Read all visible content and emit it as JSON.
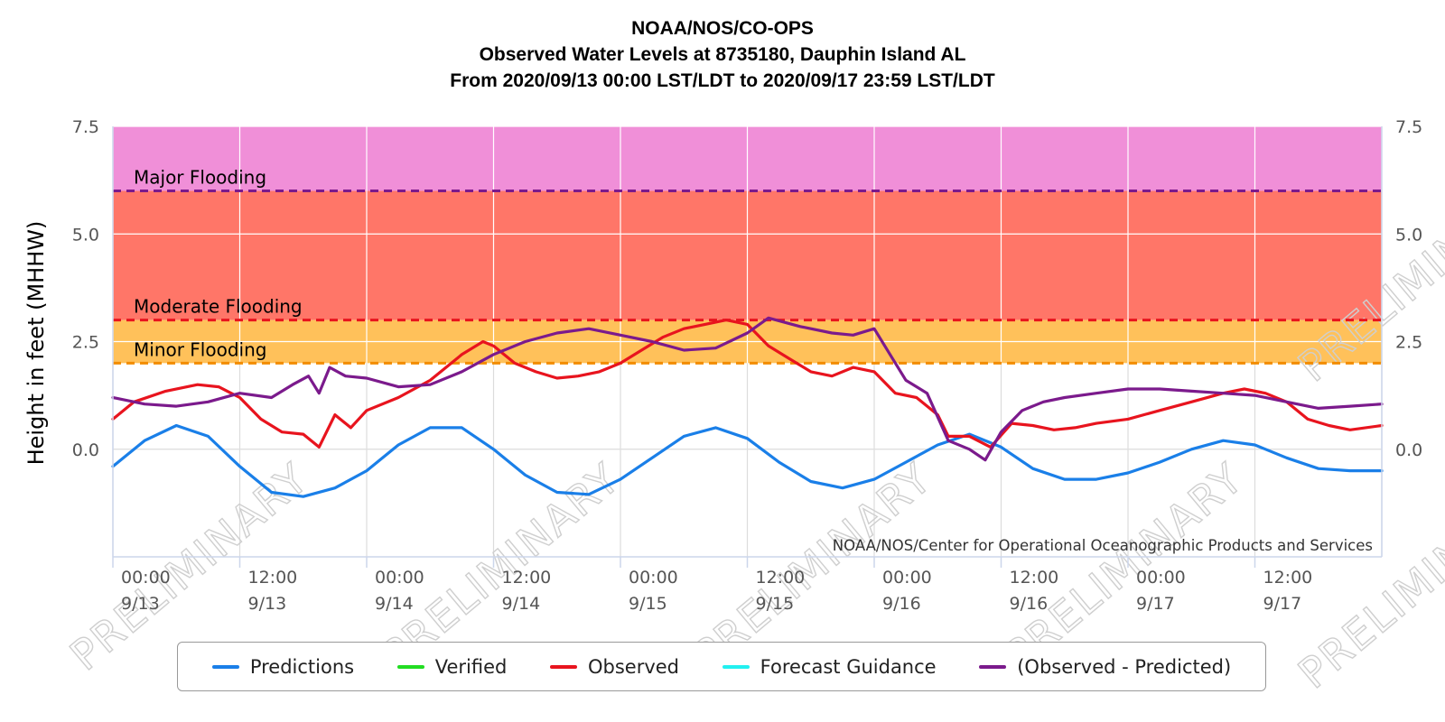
{
  "chart_data": {
    "type": "line",
    "title_lines": [
      "NOAA/NOS/CO-OPS",
      "Observed Water Levels at 8735180, Dauphin Island AL",
      "From 2020/09/13 00:00 LST/LDT to 2020/09/17 23:59 LST/LDT"
    ],
    "ylabel": "Height in feet (MHHW)",
    "credit": "NOAA/NOS/Center for Operational Oceanographic Products and Services",
    "watermark": "PRELIMINARY",
    "ylim": [
      -2.5,
      7.5
    ],
    "y_ticks": [
      {
        "value": 7.5,
        "label": "7.5"
      },
      {
        "value": 5.0,
        "label": "5.0"
      },
      {
        "value": 2.5,
        "label": "2.5"
      },
      {
        "value": 0.0,
        "label": "0.0"
      }
    ],
    "xlim": [
      "2020-09-13 00:00",
      "2020-09-18 00:00"
    ],
    "x_ticks": [
      {
        "t": "2020-09-13 00:00",
        "time": "00:00",
        "date": "9/13"
      },
      {
        "t": "2020-09-13 12:00",
        "time": "12:00",
        "date": "9/13"
      },
      {
        "t": "2020-09-14 00:00",
        "time": "00:00",
        "date": "9/14"
      },
      {
        "t": "2020-09-14 12:00",
        "time": "12:00",
        "date": "9/14"
      },
      {
        "t": "2020-09-15 00:00",
        "time": "00:00",
        "date": "9/15"
      },
      {
        "t": "2020-09-15 12:00",
        "time": "12:00",
        "date": "9/15"
      },
      {
        "t": "2020-09-16 00:00",
        "time": "00:00",
        "date": "9/16"
      },
      {
        "t": "2020-09-16 12:00",
        "time": "12:00",
        "date": "9/16"
      },
      {
        "t": "2020-09-17 00:00",
        "time": "00:00",
        "date": "9/17"
      },
      {
        "t": "2020-09-17 12:00",
        "time": "12:00",
        "date": "9/17"
      }
    ],
    "x_gridlines": [
      "2020-09-13 00:00",
      "2020-09-13 12:00",
      "2020-09-14 00:00",
      "2020-09-14 12:00",
      "2020-09-15 00:00",
      "2020-09-15 12:00",
      "2020-09-16 00:00",
      "2020-09-16 12:00",
      "2020-09-17 00:00",
      "2020-09-17 12:00",
      "2020-09-18 00:00"
    ],
    "thresholds": [
      {
        "name": "Major Flooding",
        "value": 6.0,
        "line_color": "#7b1a8c",
        "band_color": "#f08fd8",
        "band_top": 7.5
      },
      {
        "name": "Moderate Flooding",
        "value": 3.0,
        "line_color": "#e8141e",
        "band_color": "#ff7668",
        "band_top": 6.0
      },
      {
        "name": "Minor Flooding",
        "value": 2.0,
        "line_color": "#f28c00",
        "band_color": "#ffc15a",
        "band_top": 3.0
      }
    ],
    "legend_position": "bottom",
    "series": [
      {
        "name": "Predictions",
        "color": "#1a7fe8",
        "points": [
          [
            "2020-09-13 00:00",
            -0.4
          ],
          [
            "2020-09-13 03:00",
            0.2
          ],
          [
            "2020-09-13 06:00",
            0.55
          ],
          [
            "2020-09-13 09:00",
            0.3
          ],
          [
            "2020-09-13 12:00",
            -0.4
          ],
          [
            "2020-09-13 15:00",
            -1.0
          ],
          [
            "2020-09-13 18:00",
            -1.1
          ],
          [
            "2020-09-13 21:00",
            -0.9
          ],
          [
            "2020-09-14 00:00",
            -0.5
          ],
          [
            "2020-09-14 03:00",
            0.1
          ],
          [
            "2020-09-14 06:00",
            0.5
          ],
          [
            "2020-09-14 09:00",
            0.5
          ],
          [
            "2020-09-14 12:00",
            0.0
          ],
          [
            "2020-09-14 15:00",
            -0.6
          ],
          [
            "2020-09-14 18:00",
            -1.0
          ],
          [
            "2020-09-14 21:00",
            -1.05
          ],
          [
            "2020-09-15 00:00",
            -0.7
          ],
          [
            "2020-09-15 03:00",
            -0.2
          ],
          [
            "2020-09-15 06:00",
            0.3
          ],
          [
            "2020-09-15 09:00",
            0.5
          ],
          [
            "2020-09-15 12:00",
            0.25
          ],
          [
            "2020-09-15 15:00",
            -0.3
          ],
          [
            "2020-09-15 18:00",
            -0.75
          ],
          [
            "2020-09-15 21:00",
            -0.9
          ],
          [
            "2020-09-16 00:00",
            -0.7
          ],
          [
            "2020-09-16 03:00",
            -0.3
          ],
          [
            "2020-09-16 06:00",
            0.1
          ],
          [
            "2020-09-16 09:00",
            0.35
          ],
          [
            "2020-09-16 12:00",
            0.05
          ],
          [
            "2020-09-16 15:00",
            -0.45
          ],
          [
            "2020-09-16 18:00",
            -0.7
          ],
          [
            "2020-09-16 21:00",
            -0.7
          ],
          [
            "2020-09-17 00:00",
            -0.55
          ],
          [
            "2020-09-17 03:00",
            -0.3
          ],
          [
            "2020-09-17 06:00",
            0.0
          ],
          [
            "2020-09-17 09:00",
            0.2
          ],
          [
            "2020-09-17 12:00",
            0.1
          ],
          [
            "2020-09-17 15:00",
            -0.2
          ],
          [
            "2020-09-17 18:00",
            -0.45
          ],
          [
            "2020-09-17 21:00",
            -0.5
          ],
          [
            "2020-09-18 00:00",
            -0.5
          ]
        ]
      },
      {
        "name": "Verified",
        "color": "#22dd22",
        "points": []
      },
      {
        "name": "Observed",
        "color": "#e8141e",
        "points": [
          [
            "2020-09-13 00:00",
            0.7
          ],
          [
            "2020-09-13 02:00",
            1.1
          ],
          [
            "2020-09-13 05:00",
            1.35
          ],
          [
            "2020-09-13 08:00",
            1.5
          ],
          [
            "2020-09-13 10:00",
            1.45
          ],
          [
            "2020-09-13 12:00",
            1.2
          ],
          [
            "2020-09-13 14:00",
            0.7
          ],
          [
            "2020-09-13 16:00",
            0.4
          ],
          [
            "2020-09-13 18:00",
            0.35
          ],
          [
            "2020-09-13 19:30",
            0.05
          ],
          [
            "2020-09-13 21:00",
            0.8
          ],
          [
            "2020-09-13 22:30",
            0.5
          ],
          [
            "2020-09-14 00:00",
            0.9
          ],
          [
            "2020-09-14 03:00",
            1.2
          ],
          [
            "2020-09-14 06:00",
            1.6
          ],
          [
            "2020-09-14 09:00",
            2.2
          ],
          [
            "2020-09-14 11:00",
            2.5
          ],
          [
            "2020-09-14 12:00",
            2.4
          ],
          [
            "2020-09-14 14:00",
            2.0
          ],
          [
            "2020-09-14 16:00",
            1.8
          ],
          [
            "2020-09-14 18:00",
            1.65
          ],
          [
            "2020-09-14 20:00",
            1.7
          ],
          [
            "2020-09-14 22:00",
            1.8
          ],
          [
            "2020-09-15 00:00",
            2.0
          ],
          [
            "2020-09-15 02:00",
            2.3
          ],
          [
            "2020-09-15 04:00",
            2.6
          ],
          [
            "2020-09-15 06:00",
            2.8
          ],
          [
            "2020-09-15 08:00",
            2.9
          ],
          [
            "2020-09-15 10:00",
            3.0
          ],
          [
            "2020-09-15 12:00",
            2.9
          ],
          [
            "2020-09-15 14:00",
            2.4
          ],
          [
            "2020-09-15 16:00",
            2.1
          ],
          [
            "2020-09-15 18:00",
            1.8
          ],
          [
            "2020-09-15 20:00",
            1.7
          ],
          [
            "2020-09-15 22:00",
            1.9
          ],
          [
            "2020-09-16 00:00",
            1.8
          ],
          [
            "2020-09-16 02:00",
            1.3
          ],
          [
            "2020-09-16 04:00",
            1.2
          ],
          [
            "2020-09-16 06:00",
            0.8
          ],
          [
            "2020-09-16 07:00",
            0.3
          ],
          [
            "2020-09-16 09:00",
            0.3
          ],
          [
            "2020-09-16 11:00",
            0.05
          ],
          [
            "2020-09-16 13:00",
            0.6
          ],
          [
            "2020-09-16 15:00",
            0.55
          ],
          [
            "2020-09-16 17:00",
            0.45
          ],
          [
            "2020-09-16 19:00",
            0.5
          ],
          [
            "2020-09-16 21:00",
            0.6
          ],
          [
            "2020-09-17 00:00",
            0.7
          ],
          [
            "2020-09-17 03:00",
            0.9
          ],
          [
            "2020-09-17 06:00",
            1.1
          ],
          [
            "2020-09-17 09:00",
            1.3
          ],
          [
            "2020-09-17 11:00",
            1.4
          ],
          [
            "2020-09-17 13:00",
            1.3
          ],
          [
            "2020-09-17 15:00",
            1.1
          ],
          [
            "2020-09-17 17:00",
            0.7
          ],
          [
            "2020-09-17 19:00",
            0.55
          ],
          [
            "2020-09-17 21:00",
            0.45
          ],
          [
            "2020-09-18 00:00",
            0.55
          ]
        ]
      },
      {
        "name": "Forecast Guidance",
        "color": "#22f0f0",
        "points": []
      },
      {
        "name": "(Observed - Predicted)",
        "color": "#7b1a8c",
        "points": [
          [
            "2020-09-13 00:00",
            1.2
          ],
          [
            "2020-09-13 03:00",
            1.05
          ],
          [
            "2020-09-13 06:00",
            1.0
          ],
          [
            "2020-09-13 09:00",
            1.1
          ],
          [
            "2020-09-13 12:00",
            1.3
          ],
          [
            "2020-09-13 15:00",
            1.2
          ],
          [
            "2020-09-13 17:00",
            1.5
          ],
          [
            "2020-09-13 18:30",
            1.7
          ],
          [
            "2020-09-13 19:30",
            1.3
          ],
          [
            "2020-09-13 20:30",
            1.9
          ],
          [
            "2020-09-13 22:00",
            1.7
          ],
          [
            "2020-09-14 00:00",
            1.65
          ],
          [
            "2020-09-14 03:00",
            1.45
          ],
          [
            "2020-09-14 06:00",
            1.5
          ],
          [
            "2020-09-14 09:00",
            1.8
          ],
          [
            "2020-09-14 12:00",
            2.2
          ],
          [
            "2020-09-14 15:00",
            2.5
          ],
          [
            "2020-09-14 18:00",
            2.7
          ],
          [
            "2020-09-14 21:00",
            2.8
          ],
          [
            "2020-09-15 00:00",
            2.65
          ],
          [
            "2020-09-15 03:00",
            2.5
          ],
          [
            "2020-09-15 06:00",
            2.3
          ],
          [
            "2020-09-15 09:00",
            2.35
          ],
          [
            "2020-09-15 12:00",
            2.7
          ],
          [
            "2020-09-15 14:00",
            3.05
          ],
          [
            "2020-09-15 17:00",
            2.85
          ],
          [
            "2020-09-15 20:00",
            2.7
          ],
          [
            "2020-09-15 22:00",
            2.65
          ],
          [
            "2020-09-16 00:00",
            2.8
          ],
          [
            "2020-09-16 01:00",
            2.4
          ],
          [
            "2020-09-16 03:00",
            1.6
          ],
          [
            "2020-09-16 05:00",
            1.3
          ],
          [
            "2020-09-16 07:00",
            0.2
          ],
          [
            "2020-09-16 09:00",
            0.0
          ],
          [
            "2020-09-16 10:30",
            -0.25
          ],
          [
            "2020-09-16 12:00",
            0.4
          ],
          [
            "2020-09-16 14:00",
            0.9
          ],
          [
            "2020-09-16 16:00",
            1.1
          ],
          [
            "2020-09-16 18:00",
            1.2
          ],
          [
            "2020-09-16 21:00",
            1.3
          ],
          [
            "2020-09-17 00:00",
            1.4
          ],
          [
            "2020-09-17 03:00",
            1.4
          ],
          [
            "2020-09-17 06:00",
            1.35
          ],
          [
            "2020-09-17 09:00",
            1.3
          ],
          [
            "2020-09-17 12:00",
            1.25
          ],
          [
            "2020-09-17 15:00",
            1.1
          ],
          [
            "2020-09-17 18:00",
            0.95
          ],
          [
            "2020-09-17 21:00",
            1.0
          ],
          [
            "2020-09-18 00:00",
            1.05
          ]
        ]
      }
    ]
  }
}
